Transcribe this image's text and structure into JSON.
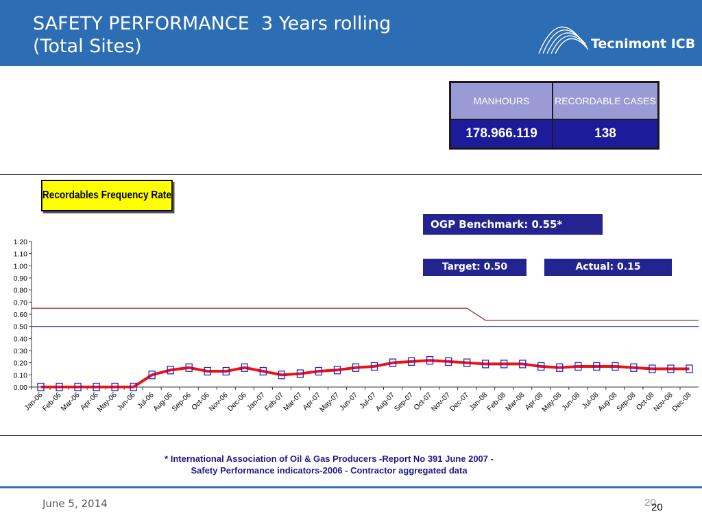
{
  "slide": {
    "title": "SAFETY PERFORMANCE  3 Years rolling\n(Total Sites)",
    "logo_text": "Tecnimont ICB",
    "date": "June 5, 2014",
    "page_number": "20",
    "page_number_overlay": "20",
    "footnote_line1": "* International Association of Oil & Gas Producers -Report No 391 June 2007 -",
    "footnote_line2": "Safety Performance indicators-2006 - Contractor aggregated data",
    "header_color": "#2d6db4"
  },
  "stats_table": {
    "headers": [
      "MANHOURS",
      "RECORDABLE CASES"
    ],
    "values": [
      "178.966.119",
      "138"
    ]
  },
  "callouts": {
    "benchmark": "OGP Benchmark: 0.55*",
    "target": "Target: 0.50",
    "actual": "Actual: 0.15"
  },
  "chart_data": {
    "type": "line",
    "title": "Recordables Frequency Rate",
    "xlabel": "",
    "ylabel": "",
    "ylim": [
      0,
      1.2
    ],
    "yticks": [
      "0.00",
      "0.10",
      "0.20",
      "0.30",
      "0.40",
      "0.50",
      "0.60",
      "0.70",
      "0.80",
      "0.90",
      "1.00",
      "1.10",
      "1.20"
    ],
    "categories": [
      "Jan-06",
      "Feb-06",
      "Mar-06",
      "Apr-06",
      "May-06",
      "Jun-06",
      "Jul-06",
      "Aug-06",
      "Sep-06",
      "Oct-06",
      "Nov-06",
      "Dec-06",
      "Jan-07",
      "Feb-07",
      "Mar-07",
      "Apr-07",
      "May-07",
      "Jun-07",
      "Jul-07",
      "Aug-07",
      "Sep-07",
      "Oct-07",
      "Nov-07",
      "Dec-07",
      "Jan-08",
      "Feb-08",
      "Mar-08",
      "Apr-08",
      "May-08",
      "Jun-08",
      "Jul-08",
      "Aug-08",
      "Sep-08",
      "Oct-08",
      "Nov-08",
      "Dec-08"
    ],
    "series": [
      {
        "values": [
          0.65,
          0.65,
          0.65,
          0.65,
          0.65,
          0.65,
          0.65,
          0.65,
          0.65,
          0.65,
          0.65,
          0.65,
          0.65,
          0.65,
          0.65,
          0.65,
          0.65,
          0.65,
          0.65,
          0.65,
          0.65,
          0.65,
          0.65,
          0.65,
          0.55,
          0.55,
          0.55,
          0.55,
          0.55,
          0.55,
          0.55,
          0.55,
          0.55,
          0.55,
          0.55,
          0.55
        ],
        "color": "#8b1a1a"
      },
      {
        "values": [
          0.5,
          0.5,
          0.5,
          0.5,
          0.5,
          0.5,
          0.5,
          0.5,
          0.5,
          0.5,
          0.5,
          0.5,
          0.5,
          0.5,
          0.5,
          0.5,
          0.5,
          0.5,
          0.5,
          0.5,
          0.5,
          0.5,
          0.5,
          0.5,
          0.5,
          0.5,
          0.5,
          0.5,
          0.5,
          0.5,
          0.5,
          0.5,
          0.5,
          0.5,
          0.5,
          0.5
        ],
        "color": "#1a1aa8"
      },
      {
        "values": [
          0.0,
          0.0,
          0.0,
          0.0,
          0.0,
          0.0,
          0.1,
          0.14,
          0.16,
          0.13,
          0.13,
          0.16,
          0.13,
          0.1,
          0.11,
          0.13,
          0.14,
          0.16,
          0.17,
          0.2,
          0.21,
          0.22,
          0.21,
          0.2,
          0.19,
          0.19,
          0.19,
          0.17,
          0.16,
          0.17,
          0.17,
          0.17,
          0.16,
          0.15,
          0.15,
          0.15
        ],
        "color": "#ee1111",
        "marker_color": "#2222cc"
      }
    ],
    "grid": false
  }
}
